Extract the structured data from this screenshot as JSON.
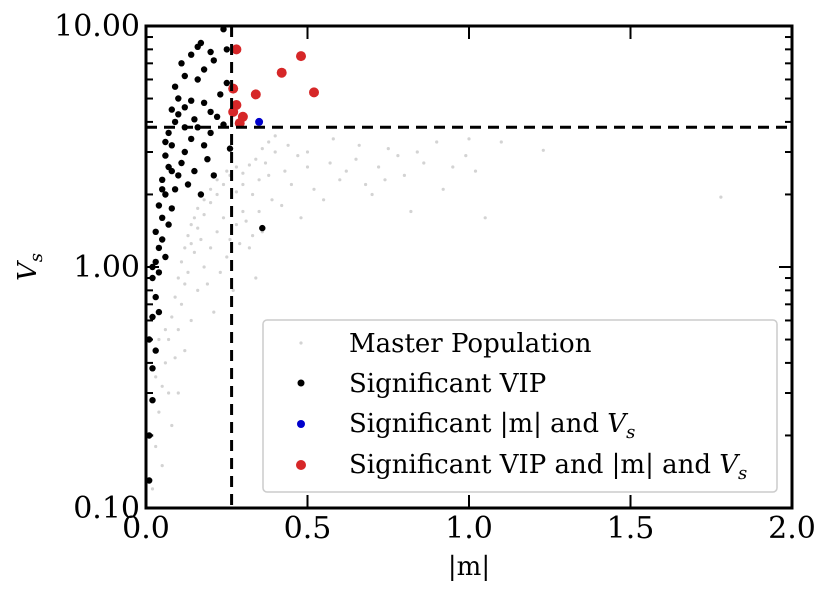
{
  "chart_data": {
    "type": "scatter",
    "title": "",
    "xlabel": "|m|",
    "ylabel": "V",
    "ylabel_subscript": "s",
    "xlim": [
      0.0,
      2.0
    ],
    "ylim": [
      0.1,
      10.0
    ],
    "yscale": "log",
    "x_ticks": [
      0.0,
      0.5,
      1.0,
      1.5,
      2.0
    ],
    "x_tick_labels": [
      "0.0",
      "0.5",
      "1.0",
      "1.5",
      "2.0"
    ],
    "y_ticks": [
      0.1,
      1.0,
      10.0
    ],
    "y_tick_labels": [
      "0.10",
      "1.00",
      "10.00"
    ],
    "thresholds": {
      "m": 0.265,
      "Vs": 3.8
    },
    "series": [
      {
        "name": "Master Population",
        "color": "#d3d3d3",
        "legend_text": "Master Population",
        "points": [
          [
            0.02,
            0.12
          ],
          [
            0.03,
            0.18
          ],
          [
            0.04,
            0.25
          ],
          [
            0.05,
            0.32
          ],
          [
            0.06,
            0.4
          ],
          [
            0.07,
            0.5
          ],
          [
            0.08,
            0.62
          ],
          [
            0.09,
            0.75
          ],
          [
            0.1,
            0.9
          ],
          [
            0.11,
            1.05
          ],
          [
            0.12,
            1.2
          ],
          [
            0.13,
            1.35
          ],
          [
            0.14,
            1.5
          ],
          [
            0.15,
            1.6
          ],
          [
            0.16,
            1.75
          ],
          [
            0.18,
            1.9
          ],
          [
            0.2,
            2.1
          ],
          [
            0.22,
            2.3
          ],
          [
            0.25,
            2.5
          ],
          [
            0.28,
            2.6
          ],
          [
            0.3,
            2.2
          ],
          [
            0.33,
            2.0
          ],
          [
            0.35,
            1.7
          ],
          [
            0.38,
            2.4
          ],
          [
            0.4,
            3.0
          ],
          [
            0.42,
            1.8
          ],
          [
            0.45,
            2.2
          ],
          [
            0.48,
            1.6
          ],
          [
            0.5,
            2.6
          ],
          [
            0.55,
            1.9
          ],
          [
            0.6,
            2.3
          ],
          [
            0.65,
            2.8
          ],
          [
            0.7,
            2.0
          ],
          [
            0.75,
            3.1
          ],
          [
            0.8,
            2.4
          ],
          [
            0.82,
            1.7
          ],
          [
            0.9,
            3.3
          ],
          [
            0.95,
            2.6
          ],
          [
            1.05,
            1.6
          ],
          [
            1.1,
            3.3
          ],
          [
            1.23,
            3.05
          ],
          [
            1.78,
            1.95
          ],
          [
            0.05,
            0.15
          ],
          [
            0.08,
            0.22
          ],
          [
            0.1,
            0.3
          ],
          [
            0.12,
            0.45
          ],
          [
            0.14,
            0.6
          ],
          [
            0.16,
            0.8
          ],
          [
            0.18,
            1.0
          ],
          [
            0.2,
            1.2
          ],
          [
            0.22,
            1.4
          ],
          [
            0.24,
            1.6
          ],
          [
            0.26,
            1.3
          ],
          [
            0.28,
            1.5
          ],
          [
            0.3,
            1.7
          ],
          [
            0.32,
            1.2
          ],
          [
            0.34,
            0.9
          ],
          [
            0.36,
            1.4
          ],
          [
            0.03,
            0.35
          ],
          [
            0.06,
            0.55
          ],
          [
            0.09,
            0.42
          ],
          [
            0.11,
            0.7
          ],
          [
            0.13,
            0.95
          ],
          [
            0.15,
            1.15
          ],
          [
            0.17,
            1.3
          ],
          [
            0.19,
            0.85
          ],
          [
            0.21,
            0.65
          ],
          [
            0.23,
            0.95
          ],
          [
            0.25,
            1.1
          ],
          [
            0.27,
            0.8
          ],
          [
            0.29,
            1.25
          ],
          [
            0.31,
            1.55
          ],
          [
            0.33,
            1.35
          ],
          [
            0.35,
            2.3
          ],
          [
            0.37,
            2.7
          ],
          [
            0.39,
            1.9
          ],
          [
            0.43,
            2.5
          ],
          [
            0.47,
            2.9
          ],
          [
            0.52,
            2.1
          ],
          [
            0.57,
            2.7
          ],
          [
            0.62,
            2.5
          ],
          [
            0.68,
            2.2
          ],
          [
            0.72,
            2.6
          ],
          [
            0.78,
            2.9
          ],
          [
            0.86,
            2.7
          ],
          [
            0.99,
            2.9
          ],
          [
            1.02,
            2.5
          ],
          [
            0.02,
            0.2
          ],
          [
            0.04,
            0.5
          ],
          [
            0.07,
            0.3
          ],
          [
            0.1,
            0.55
          ],
          [
            0.12,
            0.85
          ],
          [
            0.14,
            1.25
          ],
          [
            0.16,
            1.45
          ],
          [
            0.18,
            1.65
          ],
          [
            0.2,
            1.85
          ],
          [
            0.22,
            2.0
          ],
          [
            0.24,
            2.2
          ],
          [
            0.26,
            2.4
          ],
          [
            0.28,
            2.05
          ],
          [
            0.3,
            2.45
          ],
          [
            0.32,
            2.65
          ],
          [
            0.34,
            2.8
          ],
          [
            0.36,
            3.1
          ],
          [
            0.38,
            3.3
          ],
          [
            0.4,
            3.5
          ],
          [
            0.44,
            3.2
          ],
          [
            0.5,
            3.0
          ],
          [
            0.58,
            3.4
          ],
          [
            0.66,
            3.2
          ],
          [
            0.74,
            2.3
          ],
          [
            0.84,
            3.0
          ],
          [
            0.92,
            2.1
          ],
          [
            1.0,
            3.4
          ]
        ]
      },
      {
        "name": "Significant VIP",
        "color": "#000000",
        "legend_text": "Significant VIP",
        "points": [
          [
            0.01,
            0.13
          ],
          [
            0.01,
            0.2
          ],
          [
            0.02,
            0.28
          ],
          [
            0.02,
            0.38
          ],
          [
            0.01,
            0.5
          ],
          [
            0.02,
            0.62
          ],
          [
            0.03,
            0.75
          ],
          [
            0.02,
            0.9
          ],
          [
            0.03,
            1.05
          ],
          [
            0.04,
            1.2
          ],
          [
            0.03,
            1.4
          ],
          [
            0.05,
            1.6
          ],
          [
            0.04,
            1.8
          ],
          [
            0.06,
            2.0
          ],
          [
            0.05,
            2.3
          ],
          [
            0.07,
            2.6
          ],
          [
            0.06,
            2.9
          ],
          [
            0.08,
            3.2
          ],
          [
            0.07,
            3.6
          ],
          [
            0.09,
            4.0
          ],
          [
            0.08,
            4.5
          ],
          [
            0.1,
            5.0
          ],
          [
            0.09,
            5.6
          ],
          [
            0.12,
            6.2
          ],
          [
            0.11,
            7.0
          ],
          [
            0.14,
            7.6
          ],
          [
            0.16,
            8.2
          ],
          [
            0.17,
            8.5
          ],
          [
            0.2,
            7.8
          ],
          [
            0.24,
            9.7
          ],
          [
            0.25,
            8.0
          ],
          [
            0.12,
            3.0
          ],
          [
            0.14,
            3.4
          ],
          [
            0.16,
            3.8
          ],
          [
            0.18,
            3.2
          ],
          [
            0.2,
            3.6
          ],
          [
            0.22,
            4.2
          ],
          [
            0.24,
            3.9
          ],
          [
            0.26,
            3.1
          ],
          [
            0.13,
            2.2
          ],
          [
            0.15,
            2.5
          ],
          [
            0.17,
            2.0
          ],
          [
            0.19,
            2.8
          ],
          [
            0.21,
            2.4
          ],
          [
            0.1,
            4.3
          ],
          [
            0.12,
            4.6
          ],
          [
            0.15,
            4.1
          ],
          [
            0.18,
            4.8
          ],
          [
            0.2,
            4.4
          ],
          [
            0.23,
            5.2
          ],
          [
            0.25,
            5.8
          ],
          [
            0.04,
            0.95
          ],
          [
            0.05,
            1.3
          ],
          [
            0.06,
            1.1
          ],
          [
            0.07,
            1.5
          ],
          [
            0.08,
            1.75
          ],
          [
            0.09,
            2.1
          ],
          [
            0.1,
            2.4
          ],
          [
            0.11,
            2.7
          ],
          [
            0.12,
            3.8
          ],
          [
            0.14,
            4.9
          ],
          [
            0.16,
            6.0
          ],
          [
            0.18,
            6.6
          ],
          [
            0.21,
            7.2
          ],
          [
            0.03,
            0.45
          ],
          [
            0.04,
            0.65
          ],
          [
            0.02,
            1.0
          ],
          [
            0.05,
            2.1
          ],
          [
            0.06,
            3.3
          ],
          [
            0.08,
            2.5
          ],
          [
            0.36,
            1.45
          ]
        ]
      },
      {
        "name": "Significant |m| and Vs",
        "color": "#0000cc",
        "legend_text": "Significant |m| and ",
        "points": [
          [
            0.35,
            4.0
          ]
        ]
      },
      {
        "name": "Significant VIP and |m| and Vs",
        "color": "#d62728",
        "legend_text": "Significant VIP and |m| and ",
        "points": [
          [
            0.28,
            8.0
          ],
          [
            0.48,
            7.5
          ],
          [
            0.42,
            6.4
          ],
          [
            0.27,
            5.5
          ],
          [
            0.34,
            5.2
          ],
          [
            0.52,
            5.3
          ],
          [
            0.28,
            4.7
          ],
          [
            0.3,
            4.2
          ],
          [
            0.29,
            3.95
          ],
          [
            0.27,
            4.4
          ]
        ]
      }
    ],
    "legend": {
      "position": "bottom-right",
      "entries": [
        "Master Population",
        "Significant VIP",
        "Significant |m| and Vs",
        "Significant VIP and |m| and Vs"
      ],
      "vs_base": "V",
      "vs_subscript": "s"
    }
  }
}
